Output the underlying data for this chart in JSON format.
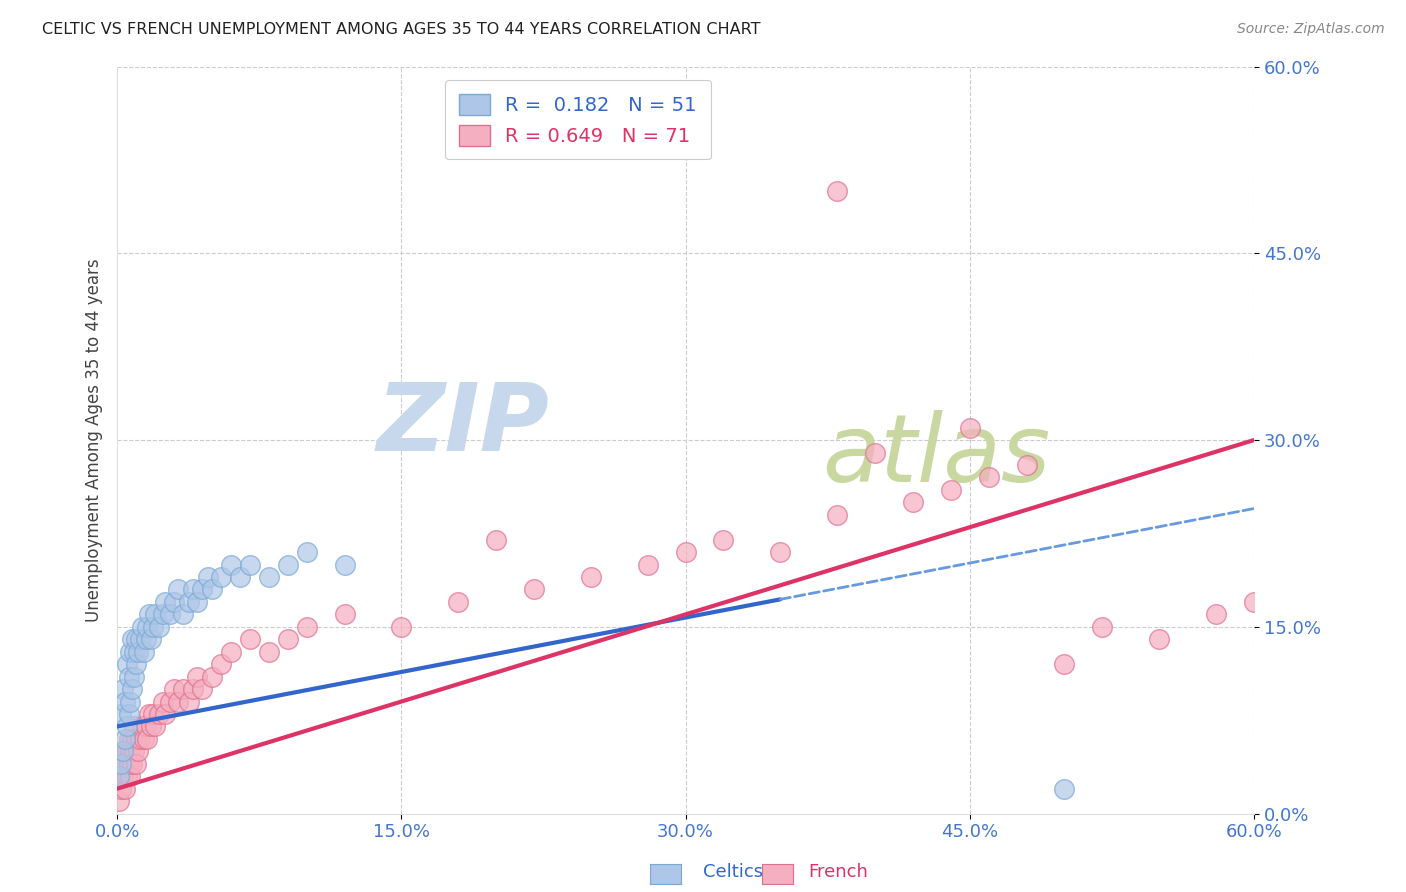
{
  "title": "CELTIC VS FRENCH UNEMPLOYMENT AMONG AGES 35 TO 44 YEARS CORRELATION CHART",
  "source": "Source: ZipAtlas.com",
  "celtics_R": "0.182",
  "celtics_N": "51",
  "french_R": "0.649",
  "french_N": "71",
  "celtics_color": "#aec6e8",
  "celtics_edge": "#7aaad4",
  "french_color": "#f4afc0",
  "french_edge": "#e07090",
  "trendline_celtics_color": "#3366cc",
  "trendline_celtics_dash_color": "#6699dd",
  "trendline_french_color": "#dd3366",
  "watermark_zip_color": "#bdd0e8",
  "watermark_atlas_color": "#c8d8a8",
  "grid_color": "#cccccc",
  "title_color": "#222222",
  "axis_label_color": "#444444",
  "tick_color": "#4477cc",
  "legend_color": "#4477cc",
  "celtics_x": [
    0.001,
    0.002,
    0.002,
    0.003,
    0.003,
    0.004,
    0.004,
    0.005,
    0.005,
    0.006,
    0.006,
    0.007,
    0.007,
    0.008,
    0.008,
    0.009,
    0.009,
    0.01,
    0.01,
    0.011,
    0.012,
    0.013,
    0.014,
    0.015,
    0.016,
    0.017,
    0.018,
    0.019,
    0.02,
    0.022,
    0.024,
    0.025,
    0.028,
    0.03,
    0.032,
    0.035,
    0.038,
    0.04,
    0.042,
    0.045,
    0.048,
    0.05,
    0.055,
    0.06,
    0.065,
    0.07,
    0.08,
    0.09,
    0.1,
    0.12,
    0.5
  ],
  "celtics_y": [
    0.03,
    0.04,
    0.08,
    0.05,
    0.1,
    0.06,
    0.09,
    0.07,
    0.12,
    0.08,
    0.11,
    0.09,
    0.13,
    0.1,
    0.14,
    0.11,
    0.13,
    0.12,
    0.14,
    0.13,
    0.14,
    0.15,
    0.13,
    0.14,
    0.15,
    0.16,
    0.14,
    0.15,
    0.16,
    0.15,
    0.16,
    0.17,
    0.16,
    0.17,
    0.18,
    0.16,
    0.17,
    0.18,
    0.17,
    0.18,
    0.19,
    0.18,
    0.19,
    0.2,
    0.19,
    0.2,
    0.19,
    0.2,
    0.21,
    0.2,
    0.02
  ],
  "french_x": [
    0.001,
    0.001,
    0.002,
    0.002,
    0.003,
    0.003,
    0.004,
    0.004,
    0.005,
    0.005,
    0.006,
    0.006,
    0.007,
    0.007,
    0.008,
    0.008,
    0.009,
    0.009,
    0.01,
    0.01,
    0.011,
    0.012,
    0.013,
    0.014,
    0.015,
    0.016,
    0.017,
    0.018,
    0.019,
    0.02,
    0.022,
    0.024,
    0.025,
    0.028,
    0.03,
    0.032,
    0.035,
    0.038,
    0.04,
    0.042,
    0.045,
    0.05,
    0.055,
    0.06,
    0.07,
    0.08,
    0.09,
    0.1,
    0.12,
    0.15,
    0.18,
    0.2,
    0.22,
    0.25,
    0.28,
    0.3,
    0.32,
    0.35,
    0.38,
    0.4,
    0.42,
    0.44,
    0.45,
    0.46,
    0.48,
    0.5,
    0.52,
    0.55,
    0.58,
    0.6,
    0.38
  ],
  "french_y": [
    0.01,
    0.03,
    0.02,
    0.04,
    0.03,
    0.05,
    0.02,
    0.04,
    0.03,
    0.05,
    0.04,
    0.06,
    0.03,
    0.05,
    0.04,
    0.06,
    0.05,
    0.07,
    0.04,
    0.06,
    0.05,
    0.06,
    0.07,
    0.06,
    0.07,
    0.06,
    0.08,
    0.07,
    0.08,
    0.07,
    0.08,
    0.09,
    0.08,
    0.09,
    0.1,
    0.09,
    0.1,
    0.09,
    0.1,
    0.11,
    0.1,
    0.11,
    0.12,
    0.13,
    0.14,
    0.13,
    0.14,
    0.15,
    0.16,
    0.15,
    0.17,
    0.22,
    0.18,
    0.19,
    0.2,
    0.21,
    0.22,
    0.21,
    0.24,
    0.29,
    0.25,
    0.26,
    0.31,
    0.27,
    0.28,
    0.12,
    0.15,
    0.14,
    0.16,
    0.17,
    0.5
  ],
  "celtics_trend_x0": 0.0,
  "celtics_trend_x1": 0.6,
  "celtics_trend_y0": 0.07,
  "celtics_trend_y1": 0.245,
  "french_trend_x0": 0.0,
  "french_trend_x1": 0.6,
  "french_trend_y0": 0.02,
  "french_trend_y1": 0.3,
  "xlim": [
    0,
    0.6
  ],
  "ylim": [
    0,
    0.6
  ],
  "tick_vals": [
    0.0,
    0.15,
    0.3,
    0.45,
    0.6
  ]
}
